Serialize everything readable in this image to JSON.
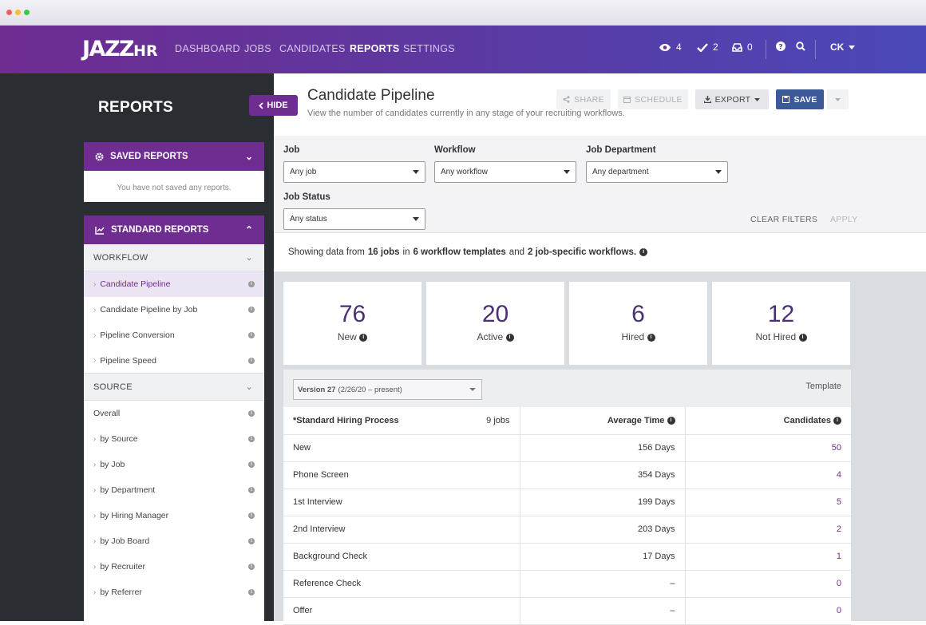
{
  "header": {
    "logo_main": "JAZZ",
    "logo_suffix": "HR",
    "nav": [
      "DASHBOARD",
      "JOBS",
      "CANDIDATES",
      "REPORTS",
      "SETTINGS"
    ],
    "active_nav": "REPORTS",
    "watch_count": "4",
    "tasks_count": "2",
    "inbox_count": "0",
    "user_initials": "CK"
  },
  "sidebar": {
    "title": "REPORTS",
    "hide_label": "HIDE",
    "saved_reports_title": "SAVED REPORTS",
    "saved_reports_empty": "You have not saved any reports.",
    "standard_reports_title": "STANDARD REPORTS",
    "workflow_group": "WORKFLOW",
    "workflow_items": [
      "Candidate Pipeline",
      "Candidate Pipeline by Job",
      "Pipeline Conversion",
      "Pipeline Speed"
    ],
    "source_group": "SOURCE",
    "source_items": [
      "Overall",
      "by Source",
      "by Job",
      "by Department",
      "by Hiring Manager",
      "by Job Board",
      "by Recruiter",
      "by Referrer"
    ]
  },
  "page": {
    "title": "Candidate Pipeline",
    "subtitle": "View the number of candidates currently in any stage of your recruiting workflows.",
    "share_label": "SHARE",
    "schedule_label": "SCHEDULE",
    "export_label": "EXPORT",
    "save_label": "SAVE"
  },
  "filters": {
    "job_label": "Job",
    "job_value": "Any job",
    "workflow_label": "Workflow",
    "workflow_value": "Any workflow",
    "department_label": "Job Department",
    "department_value": "Any department",
    "status_label": "Job Status",
    "status_value": "Any status",
    "clear_label": "CLEAR FILTERS",
    "apply_label": "APPLY"
  },
  "summary": {
    "prefix": "Showing data from",
    "jobs": "16 jobs",
    "mid": "in",
    "templates": "6 workflow templates",
    "and": "and",
    "specific": "2 job-specific workflows."
  },
  "stats": [
    {
      "value": "76",
      "label": "New"
    },
    {
      "value": "20",
      "label": "Active"
    },
    {
      "value": "6",
      "label": "Hired"
    },
    {
      "value": "12",
      "label": "Not Hired"
    }
  ],
  "table": {
    "version_bold": "Version 27",
    "version_rest": "(2/26/20 – present)",
    "template_label": "Template",
    "process_name": "*Standard Hiring Process",
    "process_jobs": "9 jobs",
    "col_avg_time": "Average Time",
    "col_candidates": "Candidates",
    "rows": [
      {
        "stage": "New",
        "time": "156 Days",
        "count": "50"
      },
      {
        "stage": "Phone Screen",
        "time": "354 Days",
        "count": "4"
      },
      {
        "stage": "1st Interview",
        "time": "199 Days",
        "count": "5"
      },
      {
        "stage": "2nd Interview",
        "time": "203 Days",
        "count": "2"
      },
      {
        "stage": "Background Check",
        "time": "17 Days",
        "count": "1"
      },
      {
        "stage": "Reference Check",
        "time": "–",
        "count": "0"
      },
      {
        "stage": "Offer",
        "time": "–",
        "count": "0"
      }
    ]
  }
}
